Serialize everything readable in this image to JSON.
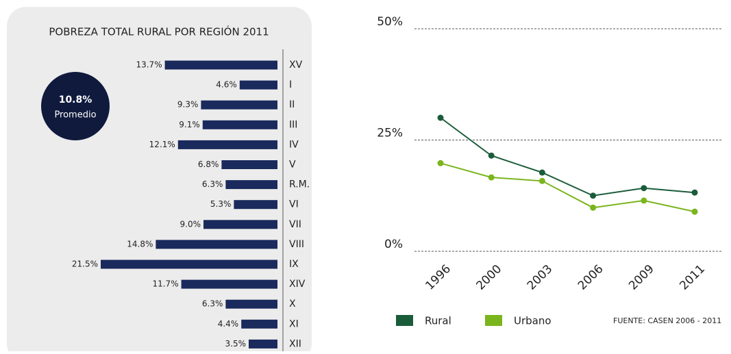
{
  "chart_data": [
    {
      "type": "barh",
      "title": "POBREZA TOTAL RURAL POR REGIÓN 2011",
      "categories": [
        "XV",
        "I",
        "II",
        "III",
        "IV",
        "V",
        "R.M.",
        "VI",
        "VII",
        "VIII",
        "IX",
        "XIV",
        "X",
        "XI",
        "XII"
      ],
      "values": [
        13.7,
        4.6,
        9.3,
        9.1,
        12.1,
        6.8,
        6.3,
        5.3,
        9.0,
        14.8,
        21.5,
        11.7,
        6.3,
        4.4,
        3.5
      ],
      "value_labels": [
        "13.7%",
        "4.6%",
        "9.3%",
        "9.1%",
        "12.1%",
        "6.8%",
        "6.3%",
        "5.3%",
        "9.0%",
        "14.8%",
        "21.5%",
        "11.7%",
        "6.3%",
        "4.4%",
        "3.5%"
      ],
      "color": "#1b2a5c",
      "annotations": [
        "10.8%",
        "Promedio"
      ]
    },
    {
      "type": "line",
      "categories": [
        "1996",
        "2000",
        "2003",
        "2006",
        "2009",
        "2011"
      ],
      "series": [
        {
          "name": "Rural",
          "color": "#1a5c3a",
          "values": [
            30.0,
            21.5,
            17.7,
            12.5,
            14.2,
            13.2
          ]
        },
        {
          "name": "Urbano",
          "color": "#7ab51d",
          "values": [
            19.8,
            16.6,
            15.8,
            9.8,
            11.4,
            8.9
          ]
        }
      ],
      "ylim": [
        0,
        50
      ],
      "yticks": [
        {
          "value": 0,
          "label": "0%"
        },
        {
          "value": 25,
          "label": "25%"
        },
        {
          "value": 50,
          "label": "50%"
        }
      ],
      "grid": true,
      "source": "FUENTE: CASEN 2006 - 2011"
    }
  ]
}
